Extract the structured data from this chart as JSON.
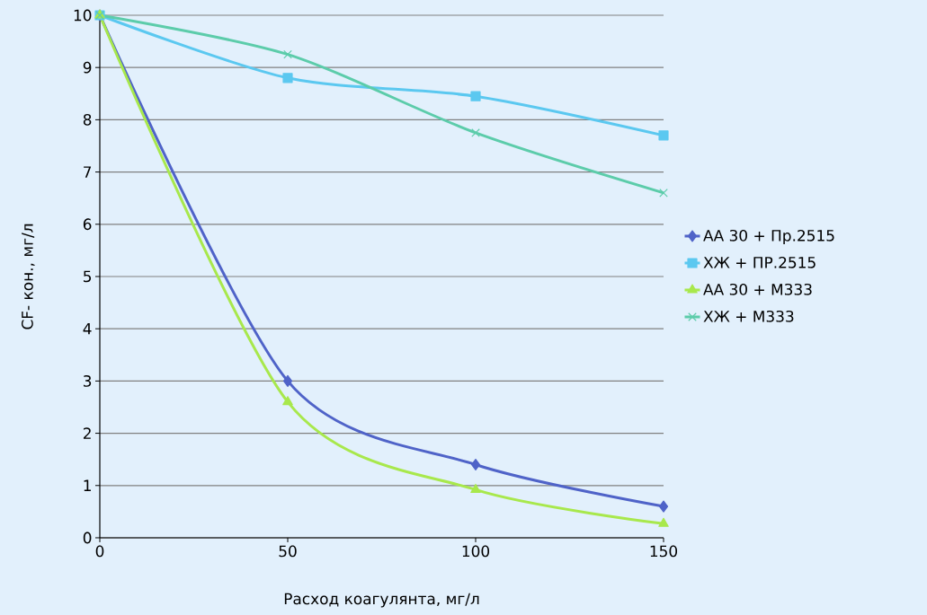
{
  "chart_data": {
    "type": "line",
    "xlabel": "Расход коагулянта, мг/л",
    "ylabel": "CF- кон., мг/л",
    "x": [
      0,
      50,
      100,
      150
    ],
    "xlim": [
      0,
      150
    ],
    "xticks": [
      0,
      50,
      100,
      150
    ],
    "ylim": [
      0,
      10
    ],
    "yticks": [
      0,
      1,
      2,
      3,
      4,
      5,
      6,
      7,
      8,
      9,
      10
    ],
    "grid": "y",
    "legend": "right",
    "line_style": "solid",
    "series": [
      {
        "name": "АА 30 + Пр.2515",
        "color": "#4f63c8",
        "marker": "diamond",
        "values": [
          10,
          3.0,
          1.4,
          0.6
        ]
      },
      {
        "name": "ХЖ + ПР.2515",
        "color": "#5bc8f0",
        "marker": "square",
        "values": [
          10,
          8.8,
          8.45,
          7.7
        ]
      },
      {
        "name": "АА 30 + М333",
        "color": "#a8e84c",
        "marker": "triangle",
        "values": [
          10,
          2.6,
          0.92,
          0.27
        ]
      },
      {
        "name": "ХЖ + М333",
        "color": "#5cccaa",
        "marker": "cross",
        "values": [
          10,
          9.25,
          7.75,
          6.6
        ]
      }
    ]
  }
}
